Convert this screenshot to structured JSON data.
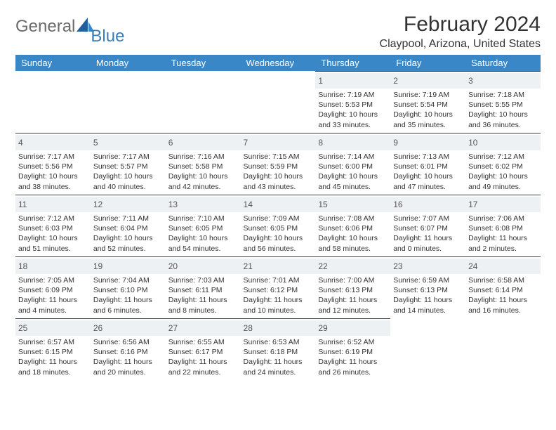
{
  "brand": {
    "text1": "General",
    "text2": "Blue"
  },
  "title": "February 2024",
  "location": "Claypool, Arizona, United States",
  "colors": {
    "header_bg": "#3a87c7",
    "header_text": "#ffffff",
    "rule": "#20456a",
    "daynum_bg": "#eef1f3",
    "body_text": "#333333",
    "logo_gray": "#6b6b6b",
    "logo_blue": "#3a7db8"
  },
  "typography": {
    "title_fontsize": 30,
    "location_fontsize": 16,
    "weekday_fontsize": 13,
    "body_fontsize": 10.5
  },
  "weekdays": [
    "Sunday",
    "Monday",
    "Tuesday",
    "Wednesday",
    "Thursday",
    "Friday",
    "Saturday"
  ],
  "layout": {
    "cols": 7,
    "rows": 5,
    "first_weekday_index": 4,
    "days_in_month": 29
  },
  "days": [
    {
      "n": 1,
      "sunrise": "7:19 AM",
      "sunset": "5:53 PM",
      "daylight": "10 hours and 33 minutes."
    },
    {
      "n": 2,
      "sunrise": "7:19 AM",
      "sunset": "5:54 PM",
      "daylight": "10 hours and 35 minutes."
    },
    {
      "n": 3,
      "sunrise": "7:18 AM",
      "sunset": "5:55 PM",
      "daylight": "10 hours and 36 minutes."
    },
    {
      "n": 4,
      "sunrise": "7:17 AM",
      "sunset": "5:56 PM",
      "daylight": "10 hours and 38 minutes."
    },
    {
      "n": 5,
      "sunrise": "7:17 AM",
      "sunset": "5:57 PM",
      "daylight": "10 hours and 40 minutes."
    },
    {
      "n": 6,
      "sunrise": "7:16 AM",
      "sunset": "5:58 PM",
      "daylight": "10 hours and 42 minutes."
    },
    {
      "n": 7,
      "sunrise": "7:15 AM",
      "sunset": "5:59 PM",
      "daylight": "10 hours and 43 minutes."
    },
    {
      "n": 8,
      "sunrise": "7:14 AM",
      "sunset": "6:00 PM",
      "daylight": "10 hours and 45 minutes."
    },
    {
      "n": 9,
      "sunrise": "7:13 AM",
      "sunset": "6:01 PM",
      "daylight": "10 hours and 47 minutes."
    },
    {
      "n": 10,
      "sunrise": "7:12 AM",
      "sunset": "6:02 PM",
      "daylight": "10 hours and 49 minutes."
    },
    {
      "n": 11,
      "sunrise": "7:12 AM",
      "sunset": "6:03 PM",
      "daylight": "10 hours and 51 minutes."
    },
    {
      "n": 12,
      "sunrise": "7:11 AM",
      "sunset": "6:04 PM",
      "daylight": "10 hours and 52 minutes."
    },
    {
      "n": 13,
      "sunrise": "7:10 AM",
      "sunset": "6:05 PM",
      "daylight": "10 hours and 54 minutes."
    },
    {
      "n": 14,
      "sunrise": "7:09 AM",
      "sunset": "6:05 PM",
      "daylight": "10 hours and 56 minutes."
    },
    {
      "n": 15,
      "sunrise": "7:08 AM",
      "sunset": "6:06 PM",
      "daylight": "10 hours and 58 minutes."
    },
    {
      "n": 16,
      "sunrise": "7:07 AM",
      "sunset": "6:07 PM",
      "daylight": "11 hours and 0 minutes."
    },
    {
      "n": 17,
      "sunrise": "7:06 AM",
      "sunset": "6:08 PM",
      "daylight": "11 hours and 2 minutes."
    },
    {
      "n": 18,
      "sunrise": "7:05 AM",
      "sunset": "6:09 PM",
      "daylight": "11 hours and 4 minutes."
    },
    {
      "n": 19,
      "sunrise": "7:04 AM",
      "sunset": "6:10 PM",
      "daylight": "11 hours and 6 minutes."
    },
    {
      "n": 20,
      "sunrise": "7:03 AM",
      "sunset": "6:11 PM",
      "daylight": "11 hours and 8 minutes."
    },
    {
      "n": 21,
      "sunrise": "7:01 AM",
      "sunset": "6:12 PM",
      "daylight": "11 hours and 10 minutes."
    },
    {
      "n": 22,
      "sunrise": "7:00 AM",
      "sunset": "6:13 PM",
      "daylight": "11 hours and 12 minutes."
    },
    {
      "n": 23,
      "sunrise": "6:59 AM",
      "sunset": "6:13 PM",
      "daylight": "11 hours and 14 minutes."
    },
    {
      "n": 24,
      "sunrise": "6:58 AM",
      "sunset": "6:14 PM",
      "daylight": "11 hours and 16 minutes."
    },
    {
      "n": 25,
      "sunrise": "6:57 AM",
      "sunset": "6:15 PM",
      "daylight": "11 hours and 18 minutes."
    },
    {
      "n": 26,
      "sunrise": "6:56 AM",
      "sunset": "6:16 PM",
      "daylight": "11 hours and 20 minutes."
    },
    {
      "n": 27,
      "sunrise": "6:55 AM",
      "sunset": "6:17 PM",
      "daylight": "11 hours and 22 minutes."
    },
    {
      "n": 28,
      "sunrise": "6:53 AM",
      "sunset": "6:18 PM",
      "daylight": "11 hours and 24 minutes."
    },
    {
      "n": 29,
      "sunrise": "6:52 AM",
      "sunset": "6:19 PM",
      "daylight": "11 hours and 26 minutes."
    }
  ],
  "labels": {
    "sunrise": "Sunrise:",
    "sunset": "Sunset:",
    "daylight": "Daylight:"
  }
}
